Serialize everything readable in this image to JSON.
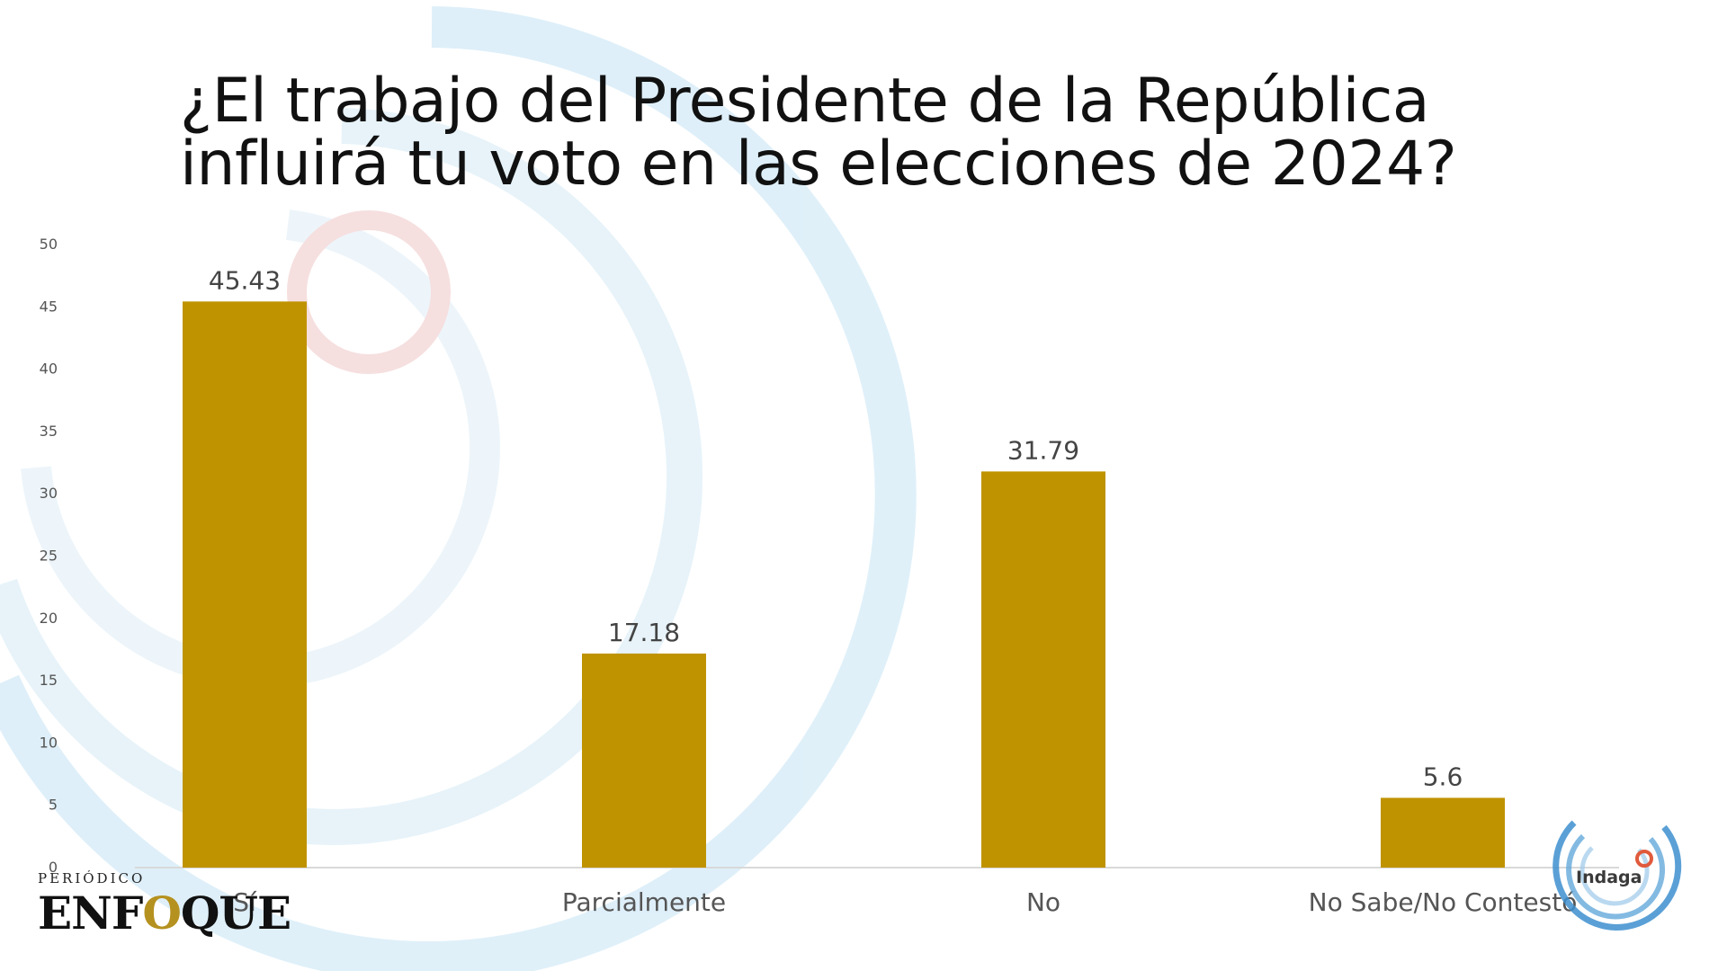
{
  "chart_data": {
    "type": "bar",
    "title": "¿El trabajo del Presidente de la República influirá tu voto en las elecciones de 2024?",
    "categories": [
      "Sí",
      "Parcialmente",
      "No",
      "No Sabe/No Contestó"
    ],
    "values": [
      45.43,
      17.18,
      31.79,
      5.6
    ],
    "data_labels": [
      "45.43",
      "17.18",
      "31.79",
      "5.6"
    ],
    "ylim": [
      0,
      50
    ],
    "yticks": [
      0,
      5,
      10,
      15,
      20,
      25,
      30,
      35,
      40,
      45,
      50
    ],
    "xlabel": "",
    "ylabel": "",
    "grid": false,
    "colors": {
      "bar": "#bf9300",
      "axis": "#d9d9d9"
    }
  },
  "branding": {
    "enfoque_small": "PERIÓDICO",
    "enfoque_main_pre": "ENF",
    "enfoque_main_o": "O",
    "enfoque_main_post": "QUE",
    "indaga": "Indaga"
  },
  "colors": {
    "arc_blue": "#d6ebf7",
    "arc_red": "#f6d6d6",
    "enfoque_o": "#b59120",
    "indaga_ring": "#3d8fcf"
  }
}
